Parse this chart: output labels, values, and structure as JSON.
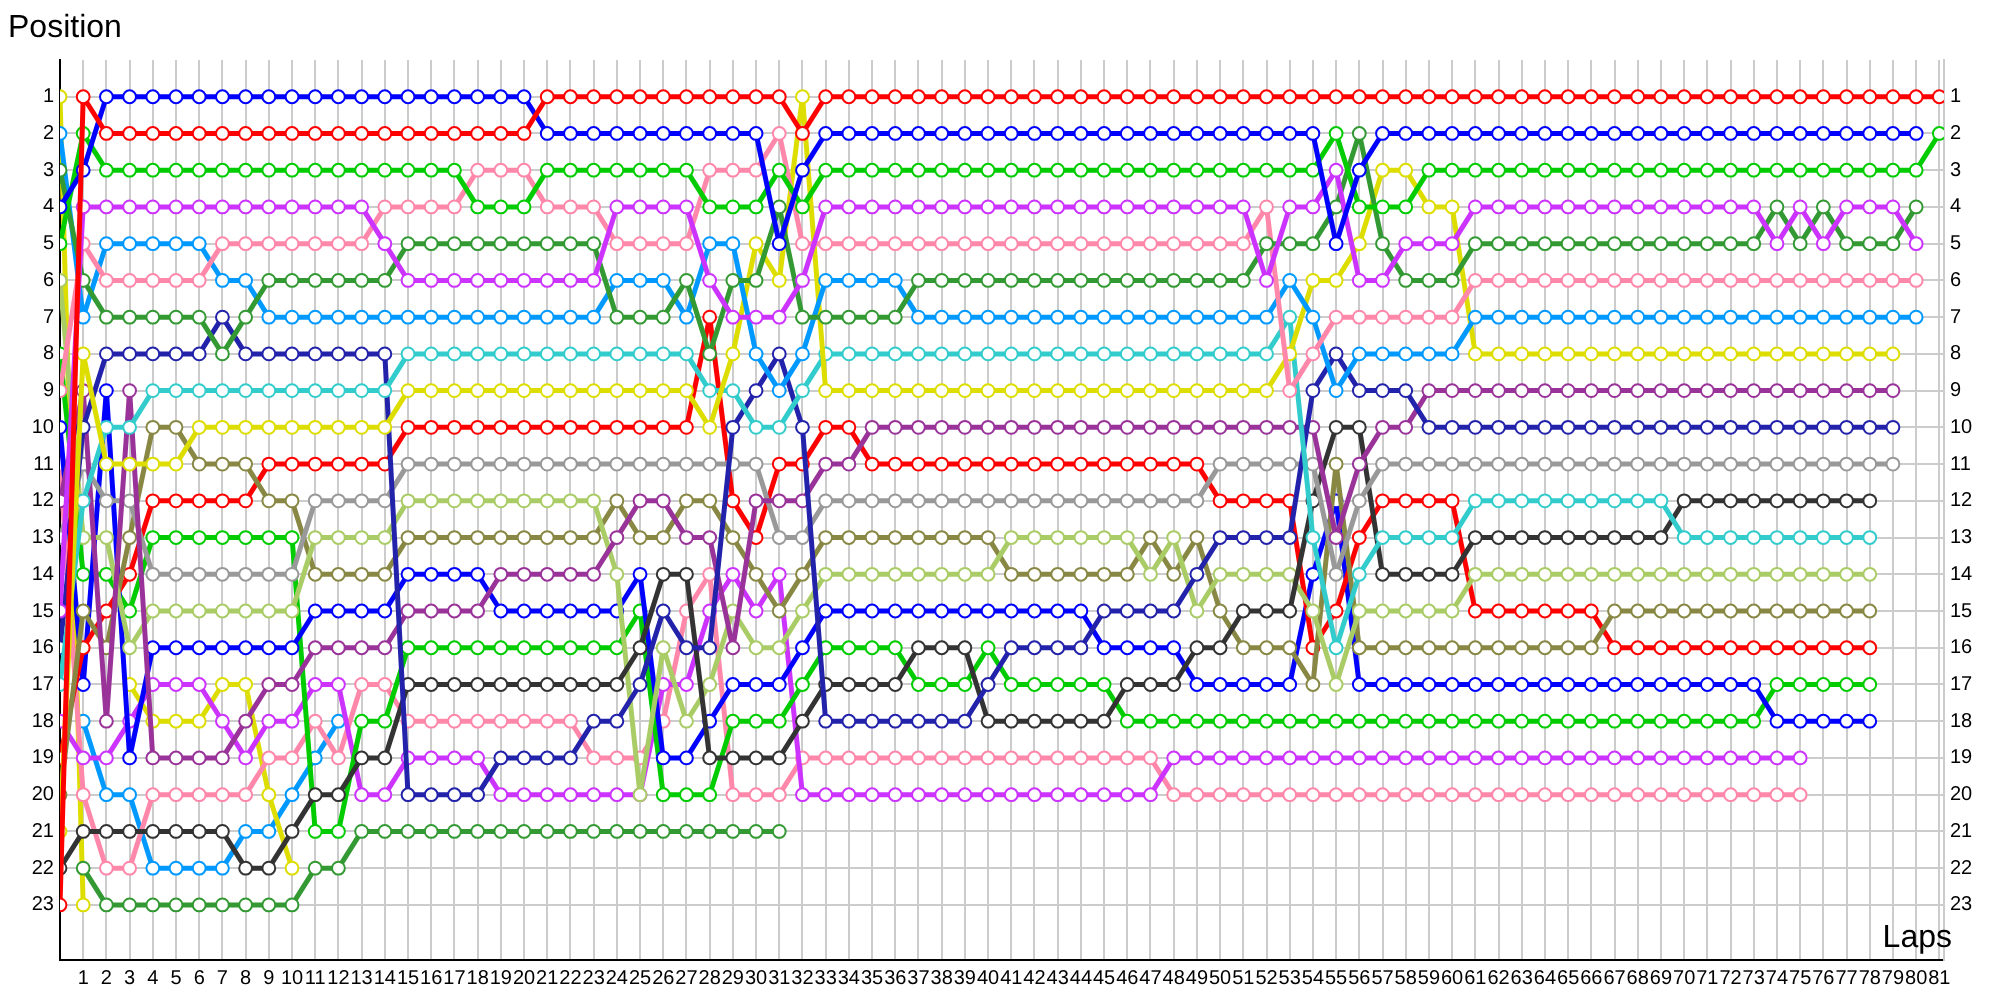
{
  "chart_data": {
    "type": "line",
    "xlabel": "Laps",
    "ylabel": "Position",
    "marker": "circle",
    "grid": true,
    "legend": false,
    "x": [
      0,
      1,
      2,
      3,
      4,
      5,
      6,
      7,
      8,
      9,
      10,
      11,
      12,
      13,
      14,
      15,
      16,
      17,
      18,
      19,
      20,
      21,
      22,
      23,
      24,
      25,
      26,
      27,
      28,
      29,
      30,
      31,
      32,
      33,
      34,
      35,
      36,
      37,
      38,
      39,
      40,
      41,
      42,
      43,
      44,
      45,
      46,
      47,
      48,
      49,
      50,
      51,
      52,
      53,
      54,
      55,
      56,
      57,
      58,
      59,
      60,
      61,
      62,
      63,
      64,
      65,
      66,
      67,
      68,
      69,
      70,
      71,
      72,
      73,
      74,
      75,
      76,
      77,
      78,
      79,
      80,
      81
    ],
    "xlim": [
      0,
      81.2
    ],
    "xticks": [
      1,
      2,
      3,
      4,
      5,
      6,
      7,
      8,
      9,
      10,
      11,
      12,
      13,
      14,
      15,
      16,
      17,
      18,
      19,
      20,
      21,
      22,
      23,
      24,
      25,
      26,
      27,
      28,
      29,
      30,
      31,
      32,
      33,
      34,
      35,
      36,
      37,
      38,
      39,
      40,
      41,
      42,
      43,
      44,
      45,
      46,
      47,
      48,
      49,
      50,
      51,
      52,
      53,
      54,
      55,
      56,
      57,
      58,
      59,
      60,
      61,
      62,
      63,
      64,
      65,
      66,
      67,
      68,
      69,
      70,
      71,
      72,
      73,
      74,
      75,
      76,
      77,
      78,
      79,
      80,
      81
    ],
    "ylim": [
      24.5,
      0
    ],
    "yticks": [
      1,
      2,
      3,
      4,
      5,
      6,
      7,
      8,
      9,
      10,
      11,
      12,
      13,
      14,
      15,
      16,
      17,
      18,
      19,
      20,
      21,
      22,
      23
    ],
    "y2lim": [
      24.5,
      0
    ],
    "y2ticks": [
      1,
      2,
      3,
      4,
      5,
      6,
      7,
      8,
      9,
      10,
      11,
      12,
      13,
      14,
      15,
      16,
      17,
      18,
      19,
      20,
      21,
      22,
      23
    ],
    "series": [
      {
        "color": "#ff0000",
        "values": [
          23,
          1,
          2,
          2,
          2,
          2,
          2,
          2,
          2,
          2,
          2,
          2,
          2,
          2,
          2,
          2,
          2,
          2,
          2,
          2,
          2,
          1,
          1,
          1,
          1,
          1,
          1,
          1,
          1,
          1,
          1,
          1,
          2,
          1,
          1,
          1,
          1,
          1,
          1,
          1,
          1,
          1,
          1,
          1,
          1,
          1,
          1,
          1,
          1,
          1,
          1,
          1,
          1,
          1,
          1,
          1,
          1,
          1,
          1,
          1,
          1,
          1,
          1,
          1,
          1,
          1,
          1,
          1,
          1,
          1,
          1,
          1,
          1,
          1,
          1,
          1,
          1,
          1,
          1,
          1,
          1,
          1
        ]
      },
      {
        "color": "#0000ff",
        "values": [
          4,
          3,
          1,
          1,
          1,
          1,
          1,
          1,
          1,
          1,
          1,
          1,
          1,
          1,
          1,
          1,
          1,
          1,
          1,
          1,
          1,
          2,
          2,
          2,
          2,
          2,
          2,
          2,
          2,
          2,
          2,
          5,
          3,
          2,
          2,
          2,
          2,
          2,
          2,
          2,
          2,
          2,
          2,
          2,
          2,
          2,
          2,
          2,
          2,
          2,
          2,
          2,
          2,
          2,
          2,
          5,
          3,
          2,
          2,
          2,
          2,
          2,
          2,
          2,
          2,
          2,
          2,
          2,
          2,
          2,
          2,
          2,
          2,
          2,
          2,
          2,
          2,
          2,
          2,
          2,
          2,
          null
        ]
      },
      {
        "color": "#00cc00",
        "values": [
          5,
          2,
          3,
          3,
          3,
          3,
          3,
          3,
          3,
          3,
          3,
          3,
          3,
          3,
          3,
          3,
          3,
          3,
          4,
          4,
          4,
          3,
          3,
          3,
          3,
          3,
          3,
          3,
          4,
          4,
          4,
          3,
          4,
          3,
          3,
          3,
          3,
          3,
          3,
          3,
          3,
          3,
          3,
          3,
          3,
          3,
          3,
          3,
          3,
          3,
          3,
          3,
          3,
          3,
          3,
          2,
          4,
          4,
          4,
          3,
          3,
          3,
          3,
          3,
          3,
          3,
          3,
          3,
          3,
          3,
          3,
          3,
          3,
          3,
          3,
          3,
          3,
          3,
          3,
          3,
          3,
          2
        ]
      },
      {
        "color": "#cc33ff",
        "values": [
          15,
          4,
          4,
          4,
          4,
          4,
          4,
          4,
          4,
          4,
          4,
          4,
          4,
          4,
          5,
          6,
          6,
          6,
          6,
          6,
          6,
          6,
          6,
          6,
          4,
          4,
          4,
          4,
          6,
          7,
          7,
          7,
          6,
          4,
          4,
          4,
          4,
          4,
          4,
          4,
          4,
          4,
          4,
          4,
          4,
          4,
          4,
          4,
          4,
          4,
          4,
          4,
          6,
          4,
          4,
          3,
          6,
          6,
          5,
          5,
          5,
          4,
          4,
          4,
          4,
          4,
          4,
          4,
          4,
          4,
          4,
          4,
          4,
          4,
          5,
          4,
          5,
          4,
          4,
          4,
          5,
          null
        ]
      },
      {
        "color": "#339933",
        "values": [
          3,
          6,
          7,
          7,
          7,
          7,
          7,
          8,
          7,
          6,
          6,
          6,
          6,
          6,
          6,
          5,
          5,
          5,
          5,
          5,
          5,
          5,
          5,
          5,
          7,
          7,
          7,
          6,
          8,
          6,
          6,
          4,
          7,
          7,
          7,
          7,
          7,
          6,
          6,
          6,
          6,
          6,
          6,
          6,
          6,
          6,
          6,
          6,
          6,
          6,
          6,
          6,
          5,
          5,
          5,
          4,
          2,
          5,
          6,
          6,
          6,
          5,
          5,
          5,
          5,
          5,
          5,
          5,
          5,
          5,
          5,
          5,
          5,
          5,
          4,
          5,
          4,
          5,
          5,
          5,
          4,
          null
        ]
      },
      {
        "color": "#ff88aa",
        "values": [
          9,
          5,
          6,
          6,
          6,
          6,
          6,
          5,
          5,
          5,
          5,
          5,
          5,
          5,
          4,
          4,
          4,
          4,
          3,
          3,
          3,
          4,
          4,
          4,
          5,
          5,
          5,
          5,
          3,
          3,
          3,
          2,
          5,
          5,
          5,
          5,
          5,
          5,
          5,
          5,
          5,
          5,
          5,
          5,
          5,
          5,
          5,
          5,
          5,
          5,
          5,
          5,
          4,
          9,
          8,
          7,
          7,
          7,
          7,
          7,
          7,
          6,
          6,
          6,
          6,
          6,
          6,
          6,
          6,
          6,
          6,
          6,
          6,
          6,
          6,
          6,
          6,
          6,
          6,
          6,
          6,
          null
        ]
      },
      {
        "color": "#0099ff",
        "values": [
          2,
          7,
          5,
          5,
          5,
          5,
          5,
          6,
          6,
          7,
          7,
          7,
          7,
          7,
          7,
          7,
          7,
          7,
          7,
          7,
          7,
          7,
          7,
          7,
          6,
          6,
          6,
          7,
          5,
          5,
          8,
          9,
          8,
          6,
          6,
          6,
          6,
          7,
          7,
          7,
          7,
          7,
          7,
          7,
          7,
          7,
          7,
          7,
          7,
          7,
          7,
          7,
          7,
          6,
          7,
          9,
          8,
          8,
          8,
          8,
          8,
          7,
          7,
          7,
          7,
          7,
          7,
          7,
          7,
          7,
          7,
          7,
          7,
          7,
          7,
          7,
          7,
          7,
          7,
          7,
          7,
          null
        ]
      },
      {
        "color": "#dddd00",
        "values": [
          21,
          8,
          11,
          11,
          11,
          11,
          10,
          10,
          10,
          10,
          10,
          10,
          10,
          10,
          10,
          9,
          9,
          9,
          9,
          9,
          9,
          9,
          9,
          9,
          9,
          9,
          9,
          9,
          10,
          8,
          5,
          6,
          1,
          9,
          9,
          9,
          9,
          9,
          9,
          9,
          9,
          9,
          9,
          9,
          9,
          9,
          9,
          9,
          9,
          9,
          9,
          9,
          9,
          8,
          6,
          6,
          5,
          3,
          3,
          4,
          4,
          8,
          8,
          8,
          8,
          8,
          8,
          8,
          8,
          8,
          8,
          8,
          8,
          8,
          8,
          8,
          8,
          8,
          8,
          8,
          null,
          null
        ]
      },
      {
        "color": "#33cccc",
        "values": [
          17,
          12,
          10,
          10,
          9,
          9,
          9,
          9,
          9,
          9,
          9,
          9,
          9,
          9,
          9,
          8,
          8,
          8,
          8,
          8,
          8,
          8,
          8,
          8,
          8,
          8,
          8,
          8,
          9,
          9,
          10,
          10,
          9,
          8,
          8,
          8,
          8,
          8,
          8,
          8,
          8,
          8,
          8,
          8,
          8,
          8,
          8,
          8,
          8,
          8,
          8,
          8,
          8,
          7,
          13,
          16,
          14,
          13,
          13,
          13,
          13,
          12,
          12,
          12,
          12,
          12,
          12,
          12,
          12,
          12,
          13,
          13,
          13,
          13,
          13,
          13,
          13,
          13,
          13,
          null,
          null,
          null
        ]
      },
      {
        "color": "#2222aa",
        "values": [
          16,
          10,
          8,
          8,
          8,
          8,
          8,
          7,
          8,
          8,
          8,
          8,
          8,
          8,
          8,
          20,
          20,
          20,
          20,
          19,
          19,
          19,
          19,
          18,
          18,
          17,
          15,
          16,
          16,
          10,
          9,
          8,
          10,
          18,
          18,
          18,
          18,
          18,
          18,
          18,
          17,
          16,
          16,
          16,
          16,
          15,
          15,
          15,
          15,
          14,
          13,
          13,
          13,
          13,
          9,
          8,
          9,
          9,
          9,
          10,
          10,
          10,
          10,
          10,
          10,
          10,
          10,
          10,
          10,
          10,
          10,
          10,
          10,
          10,
          10,
          10,
          10,
          10,
          10,
          10,
          null,
          null
        ]
      },
      {
        "color": "#993399",
        "values": [
          12,
          9,
          18,
          9,
          19,
          19,
          19,
          19,
          18,
          17,
          17,
          16,
          16,
          16,
          16,
          15,
          15,
          15,
          15,
          14,
          14,
          14,
          14,
          14,
          13,
          12,
          12,
          13,
          13,
          16,
          12,
          12,
          12,
          11,
          11,
          10,
          10,
          10,
          10,
          10,
          10,
          10,
          10,
          10,
          10,
          10,
          10,
          10,
          10,
          10,
          10,
          10,
          10,
          10,
          10,
          13,
          11,
          10,
          10,
          9,
          9,
          9,
          9,
          9,
          9,
          9,
          9,
          9,
          9,
          9,
          9,
          9,
          9,
          9,
          9,
          9,
          9,
          9,
          9,
          9,
          null,
          null
        ]
      },
      {
        "color": "#999999",
        "values": [
          13,
          11,
          12,
          12,
          14,
          14,
          14,
          14,
          14,
          14,
          14,
          12,
          12,
          12,
          12,
          11,
          11,
          11,
          11,
          11,
          11,
          11,
          11,
          11,
          11,
          11,
          11,
          11,
          11,
          11,
          11,
          13,
          13,
          12,
          12,
          12,
          12,
          12,
          12,
          12,
          12,
          12,
          12,
          12,
          12,
          12,
          12,
          12,
          12,
          12,
          11,
          11,
          11,
          11,
          11,
          14,
          12,
          11,
          11,
          11,
          11,
          11,
          11,
          11,
          11,
          11,
          11,
          11,
          11,
          11,
          11,
          11,
          11,
          11,
          11,
          11,
          11,
          11,
          11,
          11,
          null,
          null
        ]
      },
      {
        "color": "#333333",
        "values": [
          22,
          21,
          21,
          21,
          21,
          21,
          21,
          21,
          22,
          22,
          21,
          20,
          20,
          19,
          19,
          17,
          17,
          17,
          17,
          17,
          17,
          17,
          17,
          17,
          17,
          16,
          14,
          14,
          19,
          19,
          19,
          19,
          18,
          17,
          17,
          17,
          17,
          16,
          16,
          16,
          18,
          18,
          18,
          18,
          18,
          18,
          17,
          17,
          17,
          16,
          16,
          15,
          15,
          15,
          12,
          10,
          10,
          14,
          14,
          14,
          14,
          13,
          13,
          13,
          13,
          13,
          13,
          13,
          13,
          13,
          12,
          12,
          12,
          12,
          12,
          12,
          12,
          12,
          12,
          null,
          null,
          null
        ]
      },
      {
        "color": "#aacc66",
        "values": [
          6,
          13,
          13,
          16,
          15,
          15,
          15,
          15,
          15,
          15,
          15,
          13,
          13,
          13,
          13,
          12,
          12,
          12,
          12,
          12,
          12,
          12,
          12,
          12,
          14,
          20,
          16,
          18,
          17,
          15,
          16,
          16,
          15,
          14,
          14,
          14,
          14,
          14,
          14,
          14,
          14,
          13,
          13,
          13,
          13,
          13,
          13,
          14,
          13,
          15,
          14,
          14,
          14,
          14,
          15,
          17,
          15,
          15,
          15,
          15,
          15,
          14,
          14,
          14,
          14,
          14,
          14,
          14,
          14,
          14,
          14,
          14,
          14,
          14,
          14,
          14,
          14,
          14,
          14,
          null,
          null,
          null
        ]
      },
      {
        "color": "#888844",
        "values": [
          20,
          15,
          16,
          13,
          10,
          10,
          11,
          11,
          11,
          12,
          12,
          14,
          14,
          14,
          14,
          13,
          13,
          13,
          13,
          13,
          13,
          13,
          13,
          13,
          12,
          13,
          13,
          12,
          12,
          13,
          14,
          15,
          14,
          13,
          13,
          13,
          13,
          13,
          13,
          13,
          13,
          14,
          14,
          14,
          14,
          14,
          14,
          13,
          14,
          13,
          15,
          16,
          16,
          16,
          17,
          11,
          16,
          16,
          16,
          16,
          16,
          16,
          16,
          16,
          16,
          16,
          16,
          15,
          15,
          15,
          15,
          15,
          15,
          15,
          15,
          15,
          15,
          15,
          15,
          null,
          null,
          null
        ]
      },
      {
        "color": "#ff0000",
        "values": [
          19,
          16,
          15,
          14,
          12,
          12,
          12,
          12,
          12,
          11,
          11,
          11,
          11,
          11,
          11,
          10,
          10,
          10,
          10,
          10,
          10,
          10,
          10,
          10,
          10,
          10,
          10,
          10,
          7,
          12,
          13,
          11,
          11,
          10,
          10,
          11,
          11,
          11,
          11,
          11,
          11,
          11,
          11,
          11,
          11,
          11,
          11,
          11,
          11,
          11,
          12,
          12,
          12,
          12,
          16,
          15,
          13,
          12,
          12,
          12,
          12,
          15,
          15,
          15,
          15,
          15,
          15,
          16,
          16,
          16,
          16,
          16,
          16,
          16,
          16,
          16,
          16,
          16,
          16,
          null,
          null,
          null
        ]
      },
      {
        "color": "#0000ff",
        "values": [
          10,
          17,
          9,
          19,
          16,
          16,
          16,
          16,
          16,
          16,
          16,
          15,
          15,
          15,
          15,
          14,
          14,
          14,
          14,
          15,
          15,
          15,
          15,
          15,
          15,
          14,
          19,
          19,
          18,
          17,
          17,
          17,
          16,
          15,
          15,
          15,
          15,
          15,
          15,
          15,
          15,
          15,
          15,
          15,
          15,
          16,
          16,
          16,
          16,
          17,
          17,
          17,
          17,
          17,
          14,
          12,
          17,
          17,
          17,
          17,
          17,
          17,
          17,
          17,
          17,
          17,
          17,
          17,
          17,
          17,
          17,
          17,
          17,
          17,
          18,
          18,
          18,
          18,
          18,
          null,
          null,
          null
        ]
      },
      {
        "color": "#00cc00",
        "values": [
          8,
          14,
          14,
          15,
          13,
          13,
          13,
          13,
          13,
          13,
          13,
          21,
          21,
          18,
          18,
          16,
          16,
          16,
          16,
          16,
          16,
          16,
          16,
          16,
          16,
          15,
          20,
          20,
          20,
          18,
          18,
          18,
          17,
          16,
          16,
          16,
          16,
          17,
          17,
          17,
          16,
          17,
          17,
          17,
          17,
          17,
          18,
          18,
          18,
          18,
          18,
          18,
          18,
          18,
          18,
          18,
          18,
          18,
          18,
          18,
          18,
          18,
          18,
          18,
          18,
          18,
          18,
          18,
          18,
          18,
          18,
          18,
          18,
          18,
          17,
          17,
          17,
          17,
          17,
          null,
          null,
          null
        ]
      },
      {
        "color": "#cc33ff",
        "values": [
          18,
          19,
          19,
          18,
          17,
          17,
          17,
          18,
          19,
          18,
          18,
          17,
          17,
          20,
          20,
          19,
          19,
          19,
          19,
          20,
          20,
          20,
          20,
          20,
          20,
          20,
          17,
          17,
          15,
          14,
          15,
          14,
          20,
          20,
          20,
          20,
          20,
          20,
          20,
          20,
          20,
          20,
          20,
          20,
          20,
          20,
          20,
          20,
          19,
          19,
          19,
          19,
          19,
          19,
          19,
          19,
          19,
          19,
          19,
          19,
          19,
          19,
          19,
          19,
          19,
          19,
          19,
          19,
          19,
          19,
          19,
          19,
          19,
          19,
          19,
          19,
          null,
          null,
          null,
          null,
          null,
          null
        ]
      },
      {
        "color": "#ff88aa",
        "values": [
          11,
          20,
          22,
          22,
          20,
          20,
          20,
          20,
          20,
          19,
          19,
          18,
          19,
          17,
          17,
          18,
          18,
          18,
          18,
          18,
          18,
          18,
          18,
          19,
          19,
          19,
          18,
          15,
          14,
          20,
          20,
          20,
          19,
          19,
          19,
          19,
          19,
          19,
          19,
          19,
          19,
          19,
          19,
          19,
          19,
          19,
          19,
          19,
          20,
          20,
          20,
          20,
          20,
          20,
          20,
          20,
          20,
          20,
          20,
          20,
          20,
          20,
          20,
          20,
          20,
          20,
          20,
          20,
          20,
          20,
          20,
          20,
          20,
          20,
          20,
          20,
          null,
          null,
          null,
          null,
          null,
          null
        ]
      },
      {
        "color": "#339933",
        "values": [
          null,
          22,
          23,
          23,
          23,
          23,
          23,
          23,
          23,
          23,
          23,
          22,
          22,
          21,
          21,
          21,
          21,
          21,
          21,
          21,
          21,
          21,
          21,
          21,
          21,
          21,
          21,
          21,
          21,
          21,
          21,
          21,
          null,
          null,
          null,
          null,
          null,
          null,
          null,
          null,
          null,
          null,
          null,
          null,
          null,
          null,
          null,
          null,
          null,
          null,
          null,
          null,
          null,
          null,
          null,
          null,
          null,
          null,
          null,
          null,
          null,
          null,
          null,
          null,
          null,
          null,
          null,
          null,
          null,
          null,
          null,
          null,
          null,
          null,
          null,
          null,
          null,
          null,
          null,
          null,
          null,
          null
        ]
      },
      {
        "color": "#dddd00",
        "values": [
          1,
          23,
          null,
          17,
          18,
          18,
          18,
          17,
          17,
          20,
          22,
          null,
          null,
          null,
          null,
          null,
          null,
          null,
          null,
          null,
          null,
          null,
          null,
          null,
          null,
          null,
          null,
          null,
          null,
          null,
          null,
          null,
          null,
          null,
          null,
          null,
          null,
          null,
          null,
          null,
          null,
          null,
          null,
          null,
          null,
          null,
          null,
          null,
          null,
          null,
          null,
          null,
          null,
          null,
          null,
          null,
          null,
          null,
          null,
          null,
          null,
          null,
          null,
          null,
          null,
          null,
          null,
          null,
          null,
          null,
          null,
          null,
          null,
          null,
          null,
          null,
          null,
          null,
          null,
          null,
          null,
          null
        ]
      },
      {
        "color": "#0099ff",
        "values": [
          null,
          18,
          20,
          20,
          22,
          22,
          22,
          22,
          21,
          21,
          20,
          19,
          18,
          null,
          null,
          null,
          null,
          null,
          null,
          null,
          null,
          null,
          null,
          null,
          null,
          null,
          null,
          null,
          null,
          null,
          null,
          null,
          null,
          null,
          null,
          null,
          null,
          null,
          null,
          null,
          null,
          null,
          null,
          null,
          null,
          null,
          null,
          null,
          null,
          null,
          null,
          null,
          null,
          null,
          null,
          null,
          null,
          null,
          null,
          null,
          null,
          null,
          null,
          null,
          null,
          null,
          null,
          null,
          null,
          null,
          null,
          null,
          null,
          null,
          null,
          null,
          null,
          null,
          null,
          null,
          null,
          null
        ]
      }
    ]
  }
}
